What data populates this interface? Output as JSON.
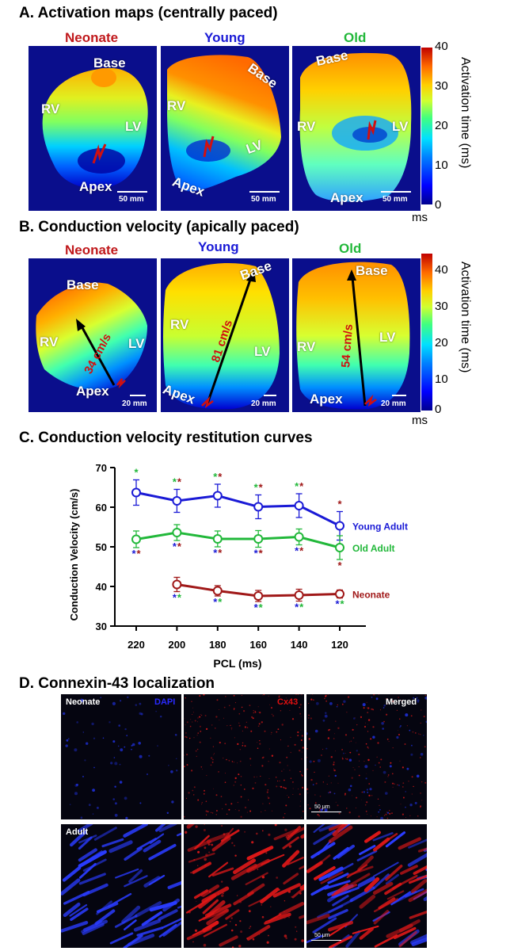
{
  "sections": {
    "a_title": "A. Activation maps (centrally paced)",
    "b_title": "B. Conduction velocity (apically paced)",
    "c_title": "C. Conduction velocity restitution curves",
    "d_title": "D. Connexin-43 localization"
  },
  "groups": {
    "neonate": "Neonate",
    "young": "Young",
    "old": "Old",
    "colors": {
      "neonate": "#c0191c",
      "young": "#1a1ad6",
      "old": "#22b83a"
    }
  },
  "maps": {
    "base": "Base",
    "rv": "RV",
    "lv": "LV",
    "apex": "Apex",
    "scale_a": "50 mm",
    "scale_b": "20 mm"
  },
  "cv_labels": {
    "neonate": "34 cm/s",
    "young": "81 cm/s",
    "old": "54 cm/s"
  },
  "colorbar_a": {
    "ticks": [
      "0",
      "10",
      "20",
      "30",
      "40"
    ],
    "title": "Activation time (ms)",
    "unit": "ms"
  },
  "colorbar_b": {
    "ticks": [
      "0",
      "10",
      "20",
      "30",
      "40"
    ],
    "title": "Activation time (ms)",
    "unit": "ms"
  },
  "chart_data": {
    "type": "line",
    "title": "",
    "xlabel": "PCL (ms)",
    "ylabel": "Conduction Velocity (cm/s)",
    "categories": [
      "220",
      "200",
      "180",
      "160",
      "140",
      "120"
    ],
    "ylim": [
      30,
      70
    ],
    "yticks": [
      "30",
      "40",
      "50",
      "60",
      "70"
    ],
    "series": [
      {
        "name": "Young Adult",
        "color": "#1a1ad6",
        "values": [
          63.7,
          61.6,
          62.9,
          60.1,
          60.4,
          55.3
        ],
        "errors": [
          3.2,
          2.9,
          2.9,
          3.0,
          3.0,
          3.6
        ]
      },
      {
        "name": "Old Adult",
        "color": "#22b83a",
        "values": [
          51.9,
          53.6,
          52.0,
          52.0,
          52.5,
          49.8
        ],
        "errors": [
          2.1,
          2.0,
          2.0,
          2.1,
          2.0,
          3.0
        ]
      },
      {
        "name": "Neonate",
        "color": "#a01818",
        "values": [
          null,
          40.5,
          38.9,
          37.6,
          37.8,
          38.1
        ],
        "errors": [
          null,
          1.8,
          1.3,
          1.4,
          1.5,
          1.0
        ]
      }
    ]
  },
  "if": {
    "neonate": "Neonate",
    "dapi": "DAPI",
    "cx43": "Cx43",
    "merged": "Merged",
    "adult": "Adult",
    "scale": "50 μm"
  }
}
